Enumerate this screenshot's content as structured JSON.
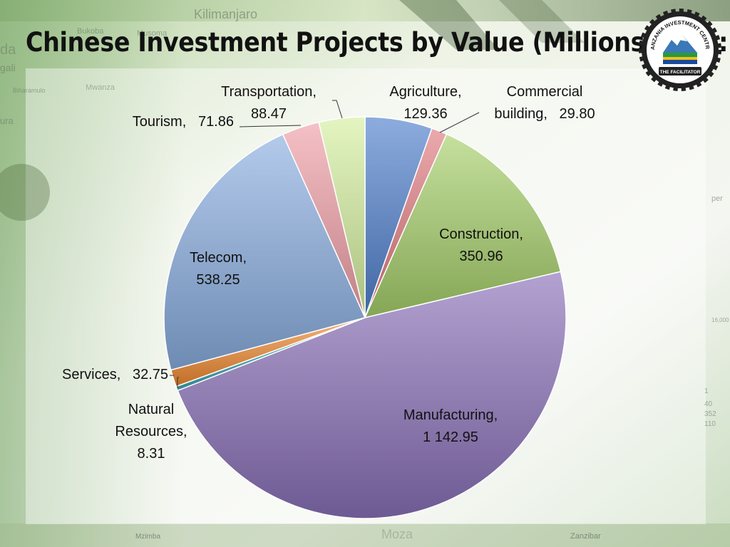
{
  "slide": {
    "title": "Chinese Investment Projects by Value (Millions USD):",
    "background_labels": {
      "kilimanjaro": "Kilimanjaro",
      "bukoba": "Bukoba",
      "musoma": "Musoma",
      "gali": "gali",
      "da": "da",
      "bihara": "Biharamulo",
      "mwanza": "Mwanza",
      "ura": "ura",
      "zanzibar": "Zanzibar",
      "mzimba": "Mzimba",
      "mozam": "Moza",
      "per": "per",
      "k16": "16,000",
      "n1": "1",
      "n40": "40",
      "n352": "352",
      "n110": "110"
    },
    "logo": {
      "top_text": "TANZANIA INVESTMENT CENTRE",
      "bottom_text": "THE FACILITATOR"
    }
  },
  "colors": {
    "agriculture": "#4f7fcc",
    "commercial": "#e07a80",
    "construction": "#a6cf6a",
    "manufacturing": "#8a70b8",
    "natural_resources": "#3aa6b8",
    "services": "#f08a30",
    "telecom": "#8aaee0",
    "tourism": "#f0a0a8",
    "transportation": "#d6f0a0"
  },
  "chart_data": {
    "type": "pie",
    "title": "Chinese Investment Projects by Value (Millions USD):",
    "categories": [
      "Agriculture",
      "Commercial building",
      "Construction",
      "Manufacturing",
      "Natural Resources",
      "Services",
      "Telecom",
      "Tourism",
      "Transportation"
    ],
    "values": [
      129.36,
      29.8,
      350.96,
      1142.95,
      8.31,
      32.75,
      538.25,
      71.86,
      88.47
    ],
    "label_texts": [
      [
        "Agriculture,",
        "129.36"
      ],
      [
        "Commercial",
        "building,   29.80"
      ],
      [
        "Construction,",
        "350.96"
      ],
      [
        "Manufacturing,",
        "1 142.95"
      ],
      [
        "Natural",
        "Resources,",
        "8.31"
      ],
      [
        "Services,   32.75"
      ],
      [
        "Telecom,",
        "538.25"
      ],
      [
        "Tourism,   71.86"
      ],
      [
        "Transportation,",
        "88.47"
      ]
    ],
    "legend": "none",
    "start": "12 o'clock, clockwise"
  }
}
